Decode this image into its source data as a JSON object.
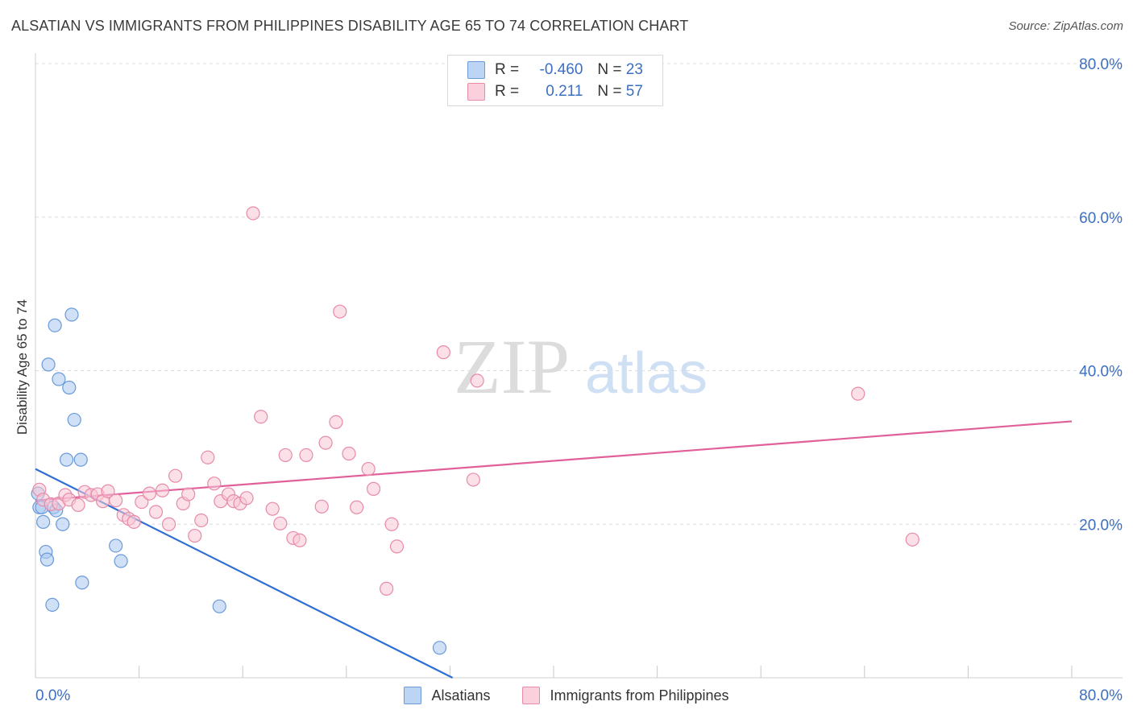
{
  "header": {
    "title": "ALSATIAN VS IMMIGRANTS FROM PHILIPPINES DISABILITY AGE 65 TO 74 CORRELATION CHART",
    "source": "Source: ZipAtlas.com"
  },
  "watermark": {
    "zip": "ZIP",
    "atlas": "atlas"
  },
  "legend_top": {
    "rows": [
      {
        "r_label": "R =",
        "r_value": "-0.460",
        "n_label": "N =",
        "n_value": "23"
      },
      {
        "r_label": "R =",
        "r_value": "0.211",
        "n_label": "N =",
        "n_value": "57"
      }
    ]
  },
  "colors": {
    "blue_fill": "#a9c8f0",
    "blue_stroke": "#6a9ad8",
    "blue_line": "#2f6fd1",
    "pink_fill": "#f7c6d6",
    "pink_stroke": "#e88aa8",
    "pink_line": "#e0609a",
    "grid": "#dcdcdc",
    "tick_label": "#3b6fc4"
  },
  "chart_data": {
    "type": "scatter",
    "title": "ALSATIAN VS IMMIGRANTS FROM PHILIPPINES DISABILITY AGE 65 TO 74 CORRELATION CHART",
    "xlabel": "",
    "ylabel": "Disability Age 65 to 74",
    "xlim": [
      0,
      80
    ],
    "ylim": [
      0,
      80
    ],
    "x_tick_labels": [
      {
        "value": 0,
        "label": "0.0%"
      },
      {
        "value": 80,
        "label": "80.0%"
      }
    ],
    "y_tick_labels": [
      {
        "value": 20,
        "label": "20.0%"
      },
      {
        "value": 40,
        "label": "40.0%"
      },
      {
        "value": 60,
        "label": "60.0%"
      },
      {
        "value": 80,
        "label": "80.0%"
      }
    ],
    "series": [
      {
        "name": "Alsatians",
        "color": "blue",
        "points": [
          [
            0.2,
            24.0
          ],
          [
            0.3,
            22.2
          ],
          [
            0.5,
            22.2
          ],
          [
            0.6,
            20.3
          ],
          [
            0.8,
            16.4
          ],
          [
            0.9,
            15.4
          ],
          [
            1.0,
            40.8
          ],
          [
            1.3,
            9.5
          ],
          [
            1.4,
            22.2
          ],
          [
            1.5,
            45.9
          ],
          [
            1.6,
            21.8
          ],
          [
            1.8,
            38.9
          ],
          [
            2.1,
            20.0
          ],
          [
            2.4,
            28.4
          ],
          [
            2.6,
            37.8
          ],
          [
            2.8,
            47.3
          ],
          [
            3.0,
            33.6
          ],
          [
            3.5,
            28.4
          ],
          [
            3.6,
            12.4
          ],
          [
            6.2,
            17.2
          ],
          [
            6.6,
            15.2
          ],
          [
            14.2,
            9.3
          ],
          [
            31.2,
            3.9
          ]
        ],
        "trendline": {
          "x": [
            0,
            32.2
          ],
          "y": [
            27.2,
            0
          ]
        }
      },
      {
        "name": "Immigrants from Philippines",
        "color": "pink",
        "points": [
          [
            0.3,
            24.5
          ],
          [
            0.6,
            23.2
          ],
          [
            1.2,
            22.6
          ],
          [
            1.8,
            22.7
          ],
          [
            2.3,
            23.8
          ],
          [
            2.6,
            23.2
          ],
          [
            3.3,
            22.5
          ],
          [
            3.8,
            24.2
          ],
          [
            4.3,
            23.8
          ],
          [
            4.8,
            23.9
          ],
          [
            5.2,
            23.0
          ],
          [
            5.6,
            24.3
          ],
          [
            6.2,
            23.1
          ],
          [
            6.8,
            21.2
          ],
          [
            7.2,
            20.7
          ],
          [
            7.6,
            20.3
          ],
          [
            8.2,
            22.9
          ],
          [
            8.8,
            24.0
          ],
          [
            9.3,
            21.6
          ],
          [
            9.8,
            24.4
          ],
          [
            10.3,
            20.0
          ],
          [
            10.8,
            26.3
          ],
          [
            11.4,
            22.7
          ],
          [
            11.8,
            23.9
          ],
          [
            12.3,
            18.5
          ],
          [
            12.8,
            20.5
          ],
          [
            13.3,
            28.7
          ],
          [
            13.8,
            25.3
          ],
          [
            14.3,
            23.0
          ],
          [
            14.9,
            23.9
          ],
          [
            15.3,
            23.0
          ],
          [
            15.8,
            22.7
          ],
          [
            16.3,
            23.4
          ],
          [
            16.8,
            60.5
          ],
          [
            17.4,
            34.0
          ],
          [
            18.3,
            22.0
          ],
          [
            18.9,
            20.1
          ],
          [
            19.3,
            29.0
          ],
          [
            19.9,
            18.2
          ],
          [
            20.4,
            17.9
          ],
          [
            20.9,
            29.0
          ],
          [
            22.1,
            22.3
          ],
          [
            22.4,
            30.6
          ],
          [
            23.2,
            33.3
          ],
          [
            23.5,
            47.7
          ],
          [
            24.2,
            29.2
          ],
          [
            24.8,
            22.2
          ],
          [
            25.7,
            27.2
          ],
          [
            26.1,
            24.6
          ],
          [
            27.1,
            11.6
          ],
          [
            27.5,
            20.0
          ],
          [
            27.9,
            17.1
          ],
          [
            31.5,
            42.4
          ],
          [
            33.8,
            25.8
          ],
          [
            34.1,
            38.7
          ],
          [
            63.5,
            37.0
          ],
          [
            67.7,
            18.0
          ]
        ],
        "trendline": {
          "x": [
            0,
            80
          ],
          "y": [
            23.1,
            33.4
          ]
        }
      }
    ]
  },
  "legend_bottom": {
    "items": [
      {
        "label": "Alsatians"
      },
      {
        "label": "Immigrants from Philippines"
      }
    ]
  }
}
